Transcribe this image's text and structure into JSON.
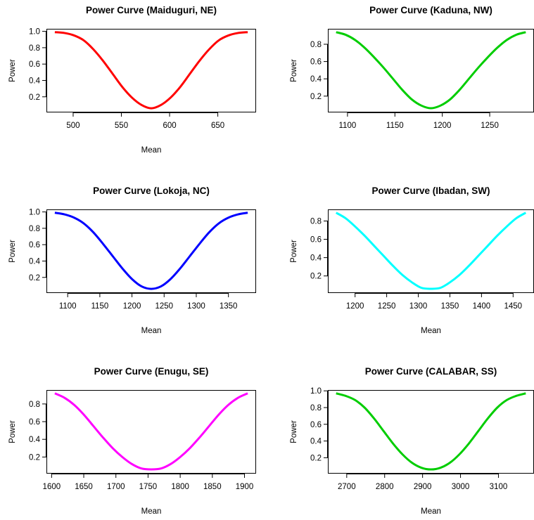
{
  "chart_data": [
    {
      "type": "line",
      "title": "Power Curve (Maiduguri, NE)",
      "xlabel": "Mean",
      "ylabel": "Power",
      "color": "#ff0000",
      "xlim": [
        481,
        681
      ],
      "ylim": [
        0.05,
        0.99
      ],
      "xticks": [
        "500",
        "550",
        "600",
        "650"
      ],
      "yticks": [
        "0.2",
        "0.4",
        "0.6",
        "0.8",
        "1.0"
      ],
      "series": [
        {
          "x": [
            481,
            491,
            501,
            511,
            521,
            531,
            541,
            551,
            561,
            571,
            581,
            591,
            601,
            611,
            621,
            631,
            641,
            651,
            661,
            671,
            681
          ],
          "y": [
            0.99,
            0.98,
            0.95,
            0.89,
            0.78,
            0.64,
            0.48,
            0.32,
            0.19,
            0.1,
            0.06,
            0.1,
            0.19,
            0.32,
            0.48,
            0.64,
            0.78,
            0.89,
            0.95,
            0.98,
            0.99
          ]
        }
      ]
    },
    {
      "type": "line",
      "title": "Power Curve (Kaduna, NW)",
      "xlabel": "",
      "ylabel": "Power",
      "color": "#00cd00",
      "xlim": [
        1088,
        1288
      ],
      "ylim": [
        0.05,
        0.94
      ],
      "xticks": [
        "1100",
        "1150",
        "1200",
        "1250"
      ],
      "yticks": [
        "0.2",
        "0.4",
        "0.6",
        "0.8"
      ],
      "series": [
        {
          "x": [
            1088,
            1098,
            1108,
            1118,
            1128,
            1138,
            1148,
            1158,
            1168,
            1178,
            1188,
            1198,
            1208,
            1218,
            1228,
            1238,
            1248,
            1258,
            1268,
            1278,
            1288
          ],
          "y": [
            0.94,
            0.91,
            0.85,
            0.76,
            0.65,
            0.53,
            0.4,
            0.27,
            0.16,
            0.09,
            0.06,
            0.09,
            0.16,
            0.27,
            0.4,
            0.53,
            0.65,
            0.76,
            0.85,
            0.91,
            0.94
          ]
        }
      ]
    },
    {
      "type": "line",
      "title": "Power Curve (Lokoja, NC)",
      "xlabel": "Mean",
      "ylabel": "Power",
      "color": "#0000ff",
      "xlim": [
        1080,
        1380
      ],
      "ylim": [
        0.05,
        0.99
      ],
      "xticks": [
        "1100",
        "1150",
        "1200",
        "1250",
        "1300",
        "1350"
      ],
      "yticks": [
        "0.2",
        "0.4",
        "0.6",
        "0.8",
        "1.0"
      ],
      "series": [
        {
          "x": [
            1080,
            1095,
            1110,
            1125,
            1140,
            1155,
            1170,
            1185,
            1200,
            1215,
            1230,
            1245,
            1260,
            1275,
            1290,
            1305,
            1320,
            1335,
            1350,
            1365,
            1380
          ],
          "y": [
            0.99,
            0.97,
            0.93,
            0.86,
            0.75,
            0.61,
            0.46,
            0.31,
            0.18,
            0.09,
            0.06,
            0.09,
            0.18,
            0.31,
            0.46,
            0.61,
            0.75,
            0.86,
            0.93,
            0.97,
            0.99
          ]
        }
      ]
    },
    {
      "type": "line",
      "title": "Power Curve (Ibadan, SW)",
      "xlabel": "Mean",
      "ylabel": "Power",
      "color": "#00ffff",
      "xlim": [
        1170,
        1470
      ],
      "ylim": [
        0.05,
        0.89
      ],
      "xticks": [
        "1200",
        "1250",
        "1300",
        "1350",
        "1400",
        "1450"
      ],
      "yticks": [
        "0.2",
        "0.4",
        "0.6",
        "0.8"
      ],
      "series": [
        {
          "x": [
            1170,
            1185,
            1200,
            1215,
            1230,
            1245,
            1260,
            1275,
            1290,
            1305,
            1320,
            1335,
            1350,
            1365,
            1380,
            1395,
            1410,
            1425,
            1440,
            1455,
            1470
          ],
          "y": [
            0.89,
            0.83,
            0.74,
            0.64,
            0.53,
            0.42,
            0.31,
            0.21,
            0.13,
            0.07,
            0.06,
            0.07,
            0.13,
            0.21,
            0.31,
            0.42,
            0.53,
            0.64,
            0.74,
            0.83,
            0.89
          ]
        }
      ]
    },
    {
      "type": "line",
      "title": "Power Curve (Enugu, SE)",
      "xlabel": "Mean",
      "ylabel": "Power",
      "color": "#ff00ff",
      "xlim": [
        1605,
        1905
      ],
      "ylim": [
        0.05,
        0.92
      ],
      "xticks": [
        "1600",
        "1650",
        "1700",
        "1750",
        "1800",
        "1850",
        "1900"
      ],
      "yticks": [
        "0.2",
        "0.4",
        "0.6",
        "0.8"
      ],
      "series": [
        {
          "x": [
            1605,
            1620,
            1635,
            1650,
            1665,
            1680,
            1695,
            1710,
            1725,
            1740,
            1755,
            1770,
            1785,
            1800,
            1815,
            1830,
            1845,
            1860,
            1875,
            1890,
            1905
          ],
          "y": [
            0.92,
            0.87,
            0.79,
            0.68,
            0.55,
            0.42,
            0.3,
            0.2,
            0.12,
            0.07,
            0.06,
            0.07,
            0.12,
            0.2,
            0.3,
            0.42,
            0.55,
            0.68,
            0.79,
            0.87,
            0.92
          ]
        }
      ]
    },
    {
      "type": "line",
      "title": "Power Curve (CALABAR, SS)",
      "xlabel": "Mean",
      "ylabel": "Power",
      "color": "#00cd00",
      "xlim": [
        2672,
        3172
      ],
      "ylim": [
        0.05,
        0.97
      ],
      "xticks": [
        "2700",
        "2800",
        "2900",
        "3000",
        "3100"
      ],
      "yticks": [
        "0.2",
        "0.4",
        "0.6",
        "0.8",
        "1.0"
      ],
      "series": [
        {
          "x": [
            2672,
            2697,
            2722,
            2747,
            2772,
            2797,
            2822,
            2847,
            2872,
            2897,
            2922,
            2947,
            2972,
            2997,
            3022,
            3047,
            3072,
            3097,
            3122,
            3147,
            3172
          ],
          "y": [
            0.97,
            0.94,
            0.89,
            0.8,
            0.67,
            0.52,
            0.37,
            0.24,
            0.14,
            0.08,
            0.06,
            0.08,
            0.14,
            0.24,
            0.37,
            0.52,
            0.67,
            0.8,
            0.89,
            0.94,
            0.97
          ]
        }
      ]
    }
  ]
}
